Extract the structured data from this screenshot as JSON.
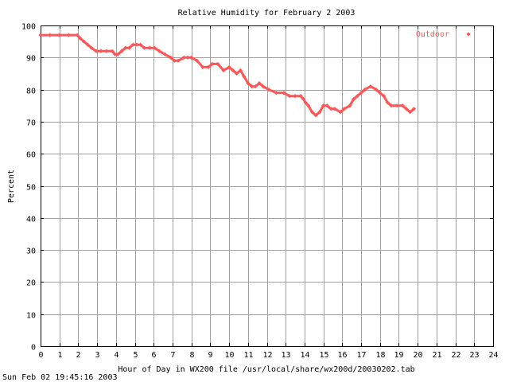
{
  "chart_data": {
    "type": "line",
    "title": "Relative Humidity for February  2 2003",
    "xlabel": "Hour of Day in WX200 file /usr/local/share/wx200d/20030202.tab",
    "ylabel": "Percent",
    "xlim": [
      0,
      24
    ],
    "ylim": [
      0,
      100
    ],
    "x_ticks": [
      0,
      1,
      2,
      3,
      4,
      5,
      6,
      7,
      8,
      9,
      10,
      11,
      12,
      13,
      14,
      15,
      16,
      17,
      18,
      19,
      20,
      21,
      22,
      23,
      24
    ],
    "y_ticks": [
      0,
      10,
      20,
      30,
      40,
      50,
      60,
      70,
      80,
      90,
      100
    ],
    "grid": true,
    "legend_position": "top-right",
    "series": [
      {
        "name": "Outdoor",
        "color": "#ff5555",
        "marker": "diamond",
        "x": [
          0,
          0.5,
          1,
          1.5,
          1.95,
          2.1,
          2.3,
          2.5,
          2.7,
          2.95,
          3.2,
          3.5,
          3.8,
          3.95,
          4.1,
          4.3,
          4.5,
          4.7,
          4.9,
          5.1,
          5.3,
          5.5,
          5.8,
          6.05,
          6.3,
          6.6,
          6.9,
          7.1,
          7.3,
          7.6,
          7.8,
          8.0,
          8.3,
          8.6,
          8.9,
          9.1,
          9.4,
          9.7,
          10.0,
          10.2,
          10.4,
          10.6,
          10.8,
          11.0,
          11.2,
          11.4,
          11.6,
          11.8,
          12.1,
          12.5,
          12.9,
          13.2,
          13.5,
          13.8,
          13.95,
          14.05,
          14.2,
          14.4,
          14.6,
          14.8,
          15.0,
          15.2,
          15.4,
          15.6,
          15.9,
          16.1,
          16.4,
          16.6,
          16.8,
          17.0,
          17.2,
          17.5,
          17.8,
          18.0,
          18.2,
          18.4,
          18.6,
          18.9,
          19.2,
          19.4,
          19.6,
          19.8
        ],
        "y": [
          97,
          97,
          97,
          97,
          97,
          96,
          95,
          94,
          93,
          92,
          92,
          92,
          92,
          91,
          91,
          92,
          93,
          93,
          94,
          94,
          94,
          93,
          93,
          93,
          92,
          91,
          90,
          89,
          89,
          90,
          90,
          90,
          89,
          87,
          87,
          88,
          88,
          86,
          87,
          86,
          85,
          86,
          84,
          82,
          81,
          81,
          82,
          81,
          80,
          79,
          79,
          78,
          78,
          78,
          77,
          76,
          75,
          73,
          72,
          73,
          75,
          75,
          74,
          74,
          73,
          74,
          75,
          77,
          78,
          79,
          80,
          81,
          80,
          79,
          78,
          76,
          75,
          75,
          75,
          74,
          73,
          74
        ]
      }
    ]
  },
  "footer_timestamp": "Sun Feb 02 19:45:16 2003"
}
